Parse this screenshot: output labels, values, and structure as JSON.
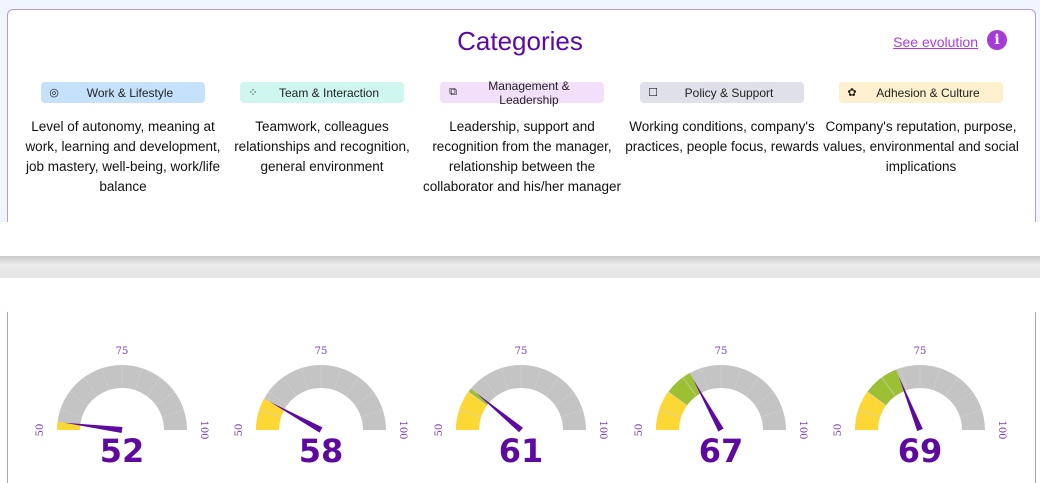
{
  "header": {
    "title": "Categories",
    "see_evolution": "See evolution",
    "info_icon": "info-icon"
  },
  "categories": [
    {
      "label": "Work & Lifestyle",
      "icon": "target-icon",
      "glyph": "◎",
      "color": "#c5e2fa",
      "description": "Level of autonomy, meaning at work, learning and development, job mastery, well-being, work/life balance"
    },
    {
      "label": "Team & Interaction",
      "icon": "dots-icon",
      "glyph": "⁘",
      "color": "#cff7ef",
      "description": "Teamwork, colleagues relationships and recognition, general environment"
    },
    {
      "label": "Management & Leadership",
      "icon": "handshake-icon",
      "glyph": "⧉",
      "color": "#f2e0fa",
      "description": "Leadership, support and recognition from the manager, relationship between the collaborator and his/her manager"
    },
    {
      "label": "Policy & Support",
      "icon": "square-icon",
      "glyph": "☐",
      "color": "#e0e0ea",
      "description": "Working conditions, company's practices, people focus, rewards"
    },
    {
      "label": "Adhesion & Culture",
      "icon": "flower-icon",
      "glyph": "✿",
      "color": "#fcf0cf",
      "description": "Company's reputation, purpose, values, environmental and social implications"
    }
  ],
  "gauges": {
    "min": 50,
    "mid": 75,
    "max": 100,
    "min_label": "50",
    "mid_label": "75",
    "max_label": "100",
    "threshold": 60,
    "colors": {
      "low": "#fdd835",
      "mid": "#9bc034",
      "rest": "#c4c4c4",
      "needle": "#5e0aa0",
      "labels": "#7b3fc4"
    },
    "values": [
      52,
      58,
      61,
      67,
      69
    ]
  }
}
